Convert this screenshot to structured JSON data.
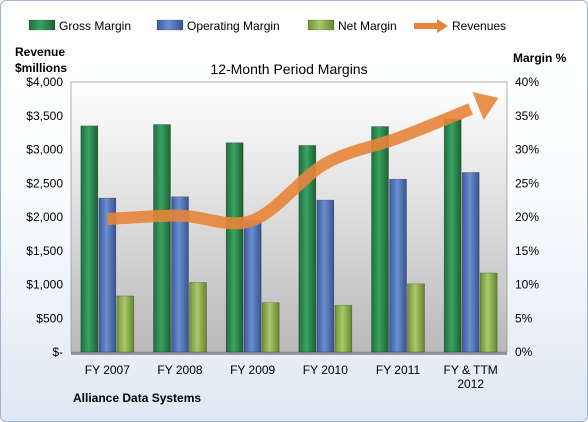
{
  "chart_data": {
    "type": "bar",
    "title": "12-Month Period Margins",
    "company": "Alliance Data Systems",
    "categories": [
      "FY 2007",
      "FY 2008",
      "FY 2009",
      "FY 2010",
      "FY 2011",
      "FY & TTM 2012"
    ],
    "left_axis": {
      "label_line1": "Revenue",
      "label_line2": "$millions",
      "ylim": [
        0,
        4000
      ],
      "ticks": [
        0,
        500,
        1000,
        1500,
        2000,
        2500,
        3000,
        3500,
        4000
      ],
      "tick_labels": [
        "$-",
        "$500",
        "$1,000",
        "$1,500",
        "$2,000",
        "$2,500",
        "$3,000",
        "$3,500",
        "$4,000"
      ]
    },
    "right_axis": {
      "label": "Margin %",
      "ylim": [
        0,
        40
      ],
      "ticks": [
        0,
        5,
        10,
        15,
        20,
        25,
        30,
        35,
        40
      ],
      "tick_labels": [
        "0%",
        "5%",
        "10%",
        "15%",
        "20%",
        "25%",
        "30%",
        "35%",
        "40%"
      ]
    },
    "series": [
      {
        "name": "Gross Margin",
        "axis": "right",
        "type": "bar",
        "color": "#2e8b4f",
        "values": [
          33.5,
          33.7,
          31.0,
          30.6,
          33.4,
          34.5
        ]
      },
      {
        "name": "Operating Margin",
        "axis": "right",
        "type": "bar",
        "color": "#4f72b8",
        "values": [
          22.8,
          23.0,
          19.5,
          22.5,
          25.6,
          26.6
        ]
      },
      {
        "name": "Net Margin",
        "axis": "right",
        "type": "bar",
        "color": "#8fb04c",
        "values": [
          8.3,
          10.3,
          7.3,
          6.9,
          10.1,
          11.7
        ]
      },
      {
        "name": "Revenues",
        "axis": "left",
        "type": "line",
        "color": "#e8843a",
        "values": [
          1970,
          2020,
          1950,
          2790,
          3170,
          3600
        ]
      }
    ],
    "legend_position": "top",
    "grid": false
  }
}
